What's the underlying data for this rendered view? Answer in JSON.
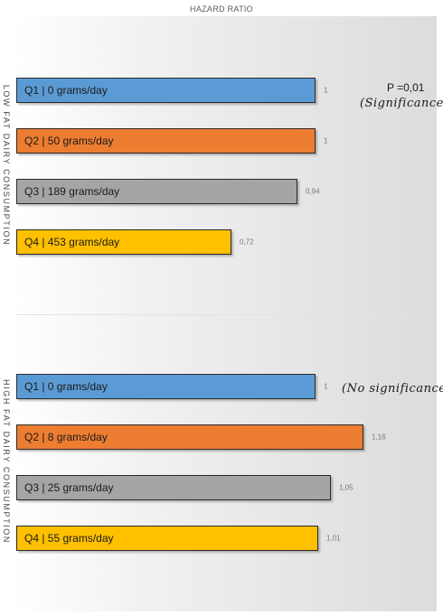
{
  "chart_data": {
    "type": "bar",
    "orientation": "horizontal",
    "title": "HAZARD RATIO",
    "xlim": [
      0,
      1.36
    ],
    "groups": [
      {
        "label": "LOW FAT DAIRY CONSUMPTION",
        "bars": [
          {
            "label": "Q1 | 0 grams/day",
            "value": 1,
            "value_label": "1",
            "color": "#5B9BD5"
          },
          {
            "label": "Q2 | 50 grams/day",
            "value": 1,
            "value_label": "1",
            "color": "#ED7D31"
          },
          {
            "label": "Q3 | 189 grams/day",
            "value": 0.94,
            "value_label": "0,94",
            "color": "#A5A5A5"
          },
          {
            "label": "Q4 | 453 grams/day",
            "value": 0.72,
            "value_label": "0,72",
            "color": "#FFC000"
          }
        ],
        "annotations": [
          "P =0,01",
          "(Significance)"
        ]
      },
      {
        "label": "HIGH FAT DAIRY CONSUMPTION",
        "bars": [
          {
            "label": "Q1 | 0 grams/day",
            "value": 1,
            "value_label": "1",
            "color": "#5B9BD5"
          },
          {
            "label": "Q2 | 8 grams/day",
            "value": 1.16,
            "value_label": "1,16",
            "color": "#ED7D31"
          },
          {
            "label": "Q3 | 25 grams/day",
            "value": 1.05,
            "value_label": "1,05",
            "color": "#A5A5A5"
          },
          {
            "label": "Q4 | 55 grams/day",
            "value": 1.01,
            "value_label": "1,01",
            "color": "#FFC000"
          }
        ],
        "annotations": [
          "(No significance)"
        ]
      }
    ]
  }
}
